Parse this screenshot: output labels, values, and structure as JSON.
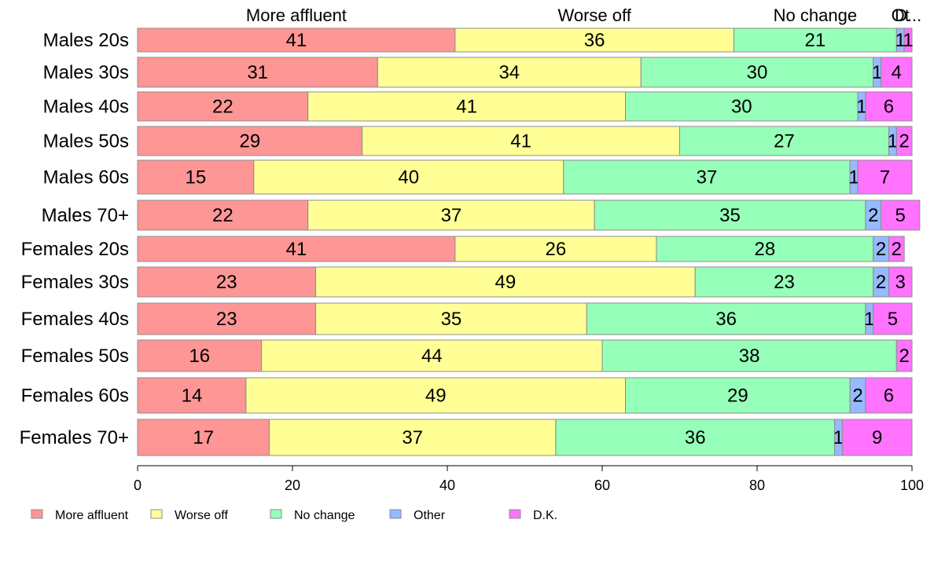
{
  "chart_data": {
    "type": "bar",
    "orientation": "horizontal",
    "stacked": true,
    "categories": [
      "Males 20s",
      "Males 30s",
      "Males 40s",
      "Males 50s",
      "Males 60s",
      "Males 70+",
      "Females 20s",
      "Females 30s",
      "Females 40s",
      "Females 50s",
      "Females 60s",
      "Females 70+"
    ],
    "series": [
      {
        "name": "More affluent",
        "color": "#FF9696",
        "values": [
          41,
          31,
          22,
          29,
          15,
          22,
          41,
          23,
          23,
          16,
          14,
          17
        ]
      },
      {
        "name": "Worse off",
        "color": "#FFFF96",
        "values": [
          36,
          34,
          41,
          41,
          40,
          37,
          26,
          49,
          35,
          44,
          49,
          37
        ]
      },
      {
        "name": "No change",
        "color": "#96FFB9",
        "values": [
          21,
          30,
          30,
          27,
          37,
          35,
          28,
          23,
          36,
          38,
          29,
          36
        ]
      },
      {
        "name": "Other",
        "color": "#96B9FF",
        "values": [
          1,
          1,
          1,
          1,
          1,
          2,
          2,
          2,
          1,
          0,
          2,
          1
        ]
      },
      {
        "name": "D.K.",
        "color": "#FF73FF",
        "values": [
          1,
          4,
          6,
          2,
          7,
          5,
          2,
          3,
          5,
          2,
          6,
          9
        ]
      }
    ],
    "top_labels": [
      "More affluent",
      "Worse off",
      "No change",
      "Ot",
      "D..."
    ],
    "x_ticks": [
      "0",
      "20",
      "40",
      "60",
      "80",
      "100"
    ],
    "xlim": [
      0,
      100
    ],
    "grid": false,
    "legend_position": "bottom-left"
  }
}
